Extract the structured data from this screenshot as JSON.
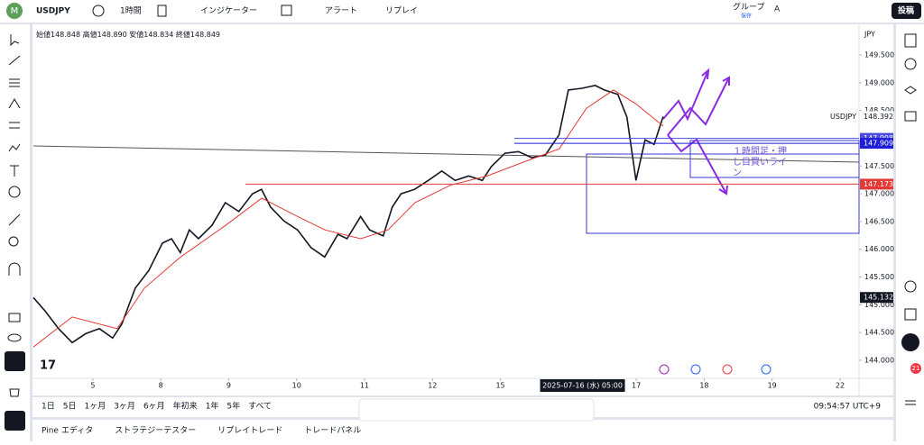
{
  "toolbar": {
    "logo": "M",
    "symbol": "USDJPY",
    "interval": "1時間",
    "indicators": "インジケーター",
    "alert": "アラート",
    "replay": "リプレイ",
    "group": "グループ",
    "save": "保存",
    "font": "A",
    "post": "投稿"
  },
  "chart_data": {
    "type": "line",
    "ohlc": [
      "始値148.848",
      "高値148.890",
      "安値148.834",
      "終値148.849"
    ],
    "currency": "JPY",
    "symbol_label": "USDJPY",
    "xlim": [
      0,
      291.7
    ],
    "ylim": [
      143.675,
      150.036
    ],
    "xticks": [
      {
        "value": 21,
        "label": "5"
      },
      {
        "value": 45,
        "label": "8"
      },
      {
        "value": 69,
        "label": "9"
      },
      {
        "value": 93,
        "label": "10"
      },
      {
        "value": 117,
        "label": "11"
      },
      {
        "value": 141,
        "label": "12"
      },
      {
        "value": 165,
        "label": "15"
      },
      {
        "value": 213,
        "label": "17"
      },
      {
        "value": 237,
        "label": "18"
      },
      {
        "value": 261,
        "label": "19"
      },
      {
        "value": 285,
        "label": "22"
      }
    ],
    "cursor_x": {
      "value": 194,
      "label": "2025-07-16 (水)  05:00"
    },
    "yticks": [
      {
        "value": 149.5,
        "label": "149.500"
      },
      {
        "value": 149.0,
        "label": "149.000"
      },
      {
        "value": 148.5,
        "label": "148.500"
      },
      {
        "value": 147.5,
        "label": "147.500"
      },
      {
        "value": 147.0,
        "label": "147.000"
      },
      {
        "value": 146.5,
        "label": "146.500"
      },
      {
        "value": 146.0,
        "label": "146.000"
      },
      {
        "value": 145.5,
        "label": "145.500"
      },
      {
        "value": 145.0,
        "label": "145.000"
      },
      {
        "value": 144.5,
        "label": "144.500"
      },
      {
        "value": 144.0,
        "label": "144.000"
      }
    ],
    "grid": false,
    "series": [
      {
        "name": "USDJPY",
        "color": "#131722",
        "x": [
          0,
          4.1,
          8.9,
          13.7,
          18.5,
          23.3,
          28.0,
          31.2,
          36.0,
          40.8,
          45.6,
          48.8,
          51.9,
          55.1,
          58.3,
          63.1,
          67.8,
          72.6,
          77.4,
          80.6,
          83.8,
          88.5,
          93.3,
          98.1,
          102.9,
          107.6,
          110.8,
          115.6,
          118.8,
          123.6,
          126.8,
          129.9,
          134.7,
          139.5,
          144.3,
          149.0,
          153.8,
          158.6,
          161.8,
          166.6,
          171.4,
          176.1,
          180.9,
          185.7,
          189.0,
          193.8,
          198.5,
          201.7,
          206.5,
          209.7,
          212.9,
          216.1,
          219.3,
          222.5
        ],
        "values": [
          145.13,
          144.89,
          144.57,
          144.32,
          144.48,
          144.57,
          144.4,
          144.65,
          145.3,
          145.62,
          146.11,
          146.19,
          145.94,
          146.35,
          146.19,
          146.43,
          146.84,
          146.68,
          147.0,
          147.08,
          146.76,
          146.51,
          146.35,
          146.03,
          145.86,
          146.27,
          146.19,
          146.59,
          146.35,
          146.24,
          146.76,
          147.0,
          147.08,
          147.24,
          147.41,
          147.24,
          147.32,
          147.24,
          147.49,
          147.73,
          147.76,
          147.65,
          147.7,
          148.06,
          148.87,
          148.9,
          148.95,
          148.87,
          148.79,
          148.38,
          147.24,
          147.97,
          147.89,
          148.39
        ]
      },
      {
        "name": "MA",
        "color": "#e53935",
        "x": [
          0,
          13.7,
          29.6,
          39.2,
          52.0,
          67.9,
          80.7,
          93.4,
          103.0,
          115.7,
          125.3,
          134.8,
          147.6,
          160.3,
          173.1,
          185.8,
          195.4,
          205.0,
          212.9,
          222.5
        ],
        "values": [
          144.24,
          144.78,
          144.57,
          145.3,
          145.86,
          146.43,
          146.92,
          146.59,
          146.35,
          146.19,
          146.35,
          146.84,
          147.16,
          147.32,
          147.57,
          147.81,
          148.54,
          148.87,
          148.62,
          148.22
        ]
      }
    ],
    "levels": [
      {
        "value": 147.998,
        "label": "147.998",
        "color": "#4a4adf"
      },
      {
        "value": 147.909,
        "label": "147.909",
        "color": "#1e1ed8"
      },
      {
        "value": 147.173,
        "label": "147.173",
        "color": "#e53935"
      }
    ],
    "price_tags": [
      {
        "value": 148.392,
        "label": "148.392",
        "color": "#ffffff"
      },
      {
        "value": 145.132,
        "label": "145.132",
        "color": "#131722"
      }
    ],
    "annotation": [
      "１時間足・押",
      "し目買いライ",
      "ン"
    ]
  },
  "bottom_bar": {
    "ranges": [
      "1日",
      "5日",
      "1ヶ月",
      "3ヶ月",
      "6ヶ月",
      "年初来",
      "1年",
      "5年",
      "すべて"
    ],
    "clock": "09:54:57 UTC+9"
  },
  "tabs": [
    "Pine エディタ",
    "ストラテジーテスター",
    "リプレイトレード",
    "トレードパネル"
  ],
  "notifications": "21"
}
